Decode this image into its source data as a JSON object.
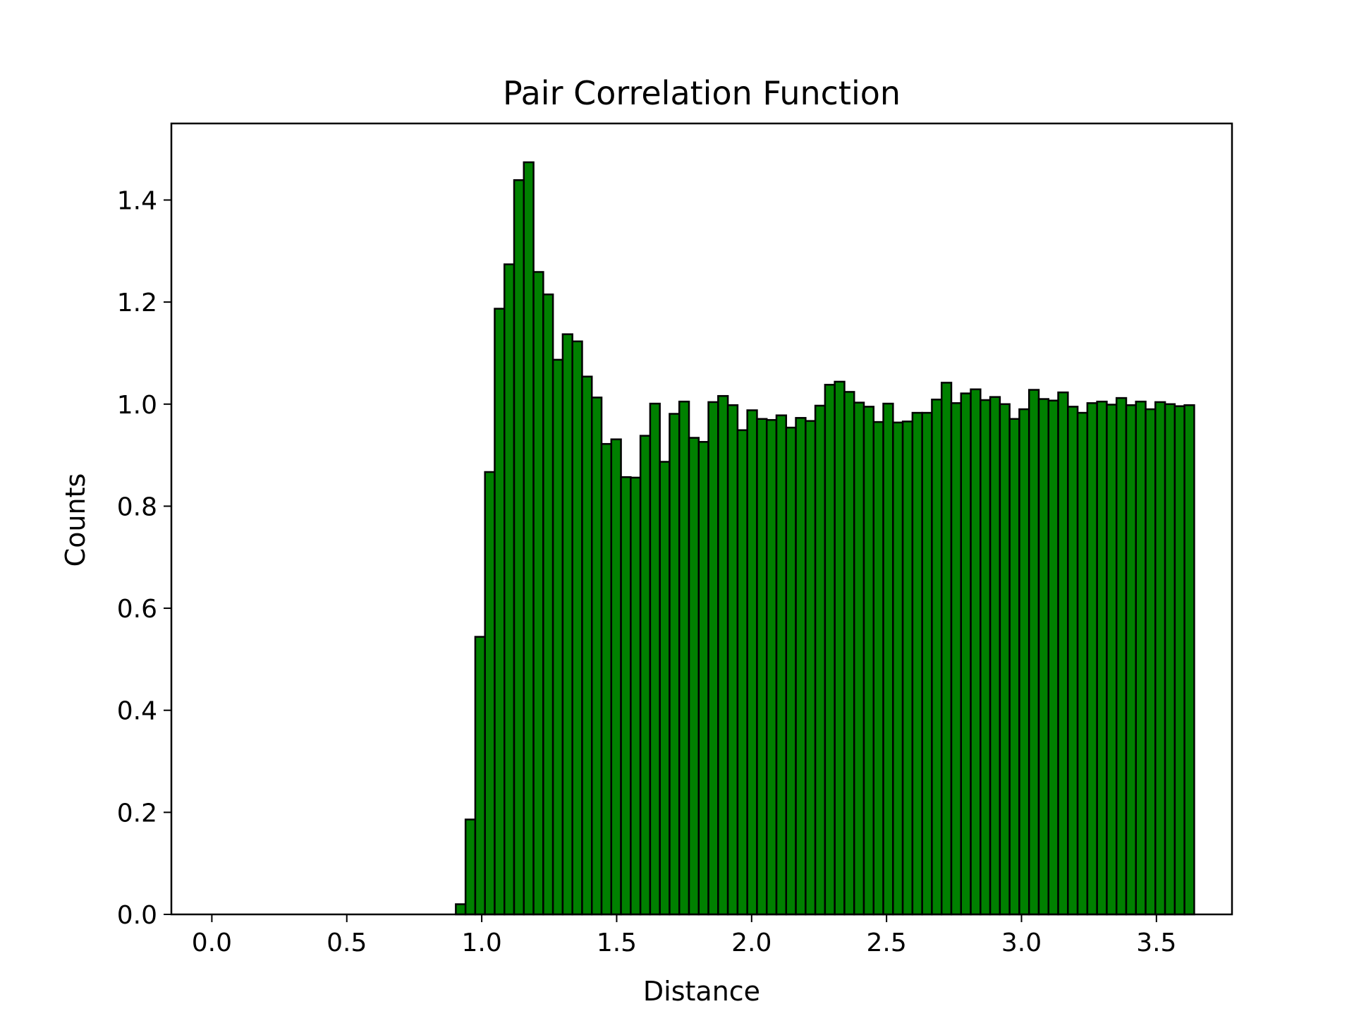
{
  "chart_data": {
    "type": "bar",
    "title": "Pair Correlation Function",
    "xlabel": "Distance",
    "ylabel": "Counts",
    "xlim": [
      -0.15,
      3.78
    ],
    "ylim": [
      0,
      1.55
    ],
    "xticks": [
      "0.0",
      "0.5",
      "1.0",
      "1.5",
      "2.0",
      "2.5",
      "3.0",
      "3.5"
    ],
    "yticks": [
      "0.0",
      "0.2",
      "0.4",
      "0.6",
      "0.8",
      "1.0",
      "1.2",
      "1.4"
    ],
    "bin_start": 0.04,
    "bin_width": 0.036,
    "bar_color": "#008000",
    "edge_color": "#000000",
    "grid": false,
    "values": [
      0,
      0,
      0,
      0,
      0,
      0,
      0,
      0,
      0,
      0,
      0,
      0,
      0,
      0,
      0,
      0,
      0,
      0,
      0,
      0,
      0,
      0,
      0,
      0,
      0.02,
      0.186,
      0.544,
      0.867,
      1.187,
      1.274,
      1.439,
      1.474,
      1.259,
      1.215,
      1.087,
      1.137,
      1.123,
      1.054,
      1.013,
      0.922,
      0.931,
      0.857,
      0.856,
      0.938,
      1.001,
      0.887,
      0.981,
      1.005,
      0.934,
      0.926,
      1.004,
      1.016,
      0.998,
      0.949,
      0.988,
      0.971,
      0.969,
      0.978,
      0.954,
      0.973,
      0.967,
      0.997,
      1.038,
      1.044,
      1.024,
      1.003,
      0.995,
      0.965,
      1.001,
      0.964,
      0.966,
      0.983,
      0.983,
      1.009,
      1.042,
      1.002,
      1.021,
      1.029,
      1.008,
      1.014,
      1.0,
      0.971,
      0.99,
      1.028,
      1.01,
      1.007,
      1.023,
      0.995,
      0.983,
      1.002,
      1.005,
      0.999,
      1.012,
      0.998,
      1.005,
      0.99,
      1.004,
      1.0,
      0.996,
      0.998
    ]
  }
}
